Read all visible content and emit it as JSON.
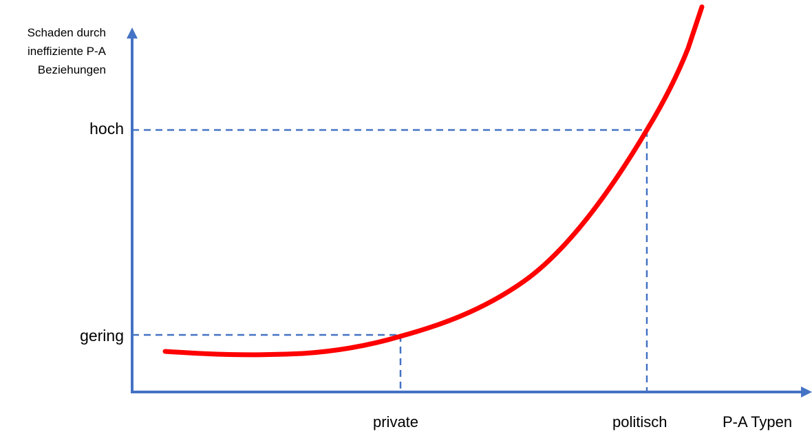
{
  "diagram": {
    "y_axis_label_lines": [
      "Schaden durch",
      "ineffiziente P-A",
      "Beziehungen"
    ],
    "x_axis_label": "P-A Typen",
    "y_levels": {
      "high": "hoch",
      "low": "gering"
    },
    "x_categories": {
      "private": "private",
      "political": "politisch"
    },
    "colors": {
      "axis": "#4472c4",
      "guide_lines": "#4472c4",
      "curve": "#ff0000"
    }
  }
}
